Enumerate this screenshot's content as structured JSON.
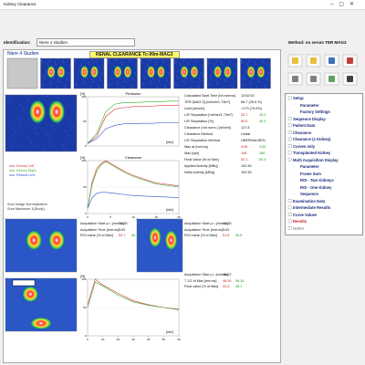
{
  "window_title": "Kidney Clearance",
  "identification_label": "Identification:",
  "identification_value": "Niere 4 Studien",
  "method": "Method: no serum TER  MAG3",
  "study_name": "Niere 4 Studien",
  "banner": "RENAL CLEARANCE   Tc-99m-MAG3",
  "results": [
    {
      "label": "Calculated Start Time [hh:mm:ss]",
      "values": [
        "13:52:02"
      ]
    },
    {
      "label": "TER [MAG 3] [ml/min/1.73m²]",
      "values": [
        "66.7 (26.5 %)"
      ]
    },
    {
      "label": "Limit [ml/min]",
      "values": [
        ">173 (75.0%)"
      ]
    },
    {
      "label": "L/R Separation [ml/min/1.73m²]",
      "values": [
        "33.7",
        "33.0"
      ]
    },
    {
      "label": "L/R Separation [%]",
      "values": [
        "50.6",
        "49.4"
      ]
    },
    {
      "label": "Clearance (not norm.) [ml/min]",
      "values": [
        "127.8"
      ]
    },
    {
      "label": "Clearance Method",
      "values": [
        "Linear"
      ]
    },
    {
      "label": "L/R Separation Method",
      "values": [
        "OBERHAUSEN"
      ]
    },
    {
      "label": "Max at [mm:ss]",
      "values": [
        "4:05",
        "3:05"
      ]
    },
    {
      "label": "Max [cps]",
      "values": [
        "198",
        "186"
      ]
    },
    {
      "label": "Final Value [% of Max]",
      "values": [
        "52.1",
        "50.4"
      ]
    },
    {
      "label": "Applied Activity [MBq]",
      "values": [
        "100.30"
      ]
    },
    {
      "label": "Netto Activity [MBq]",
      "values": [
        "100.30"
      ]
    }
  ],
  "acquisitions": [
    {
      "rows": [
        {
          "label": "Acquisition Start p.i. [mm:ss]",
          "values": [
            "31:28"
          ]
        },
        {
          "label": "Acquisition Time [mm:ss]",
          "values": [
            "5:00"
          ]
        },
        {
          "label": "ROI value [% of Max]",
          "values": [
            "52.7",
            "55.1"
          ]
        }
      ]
    },
    {
      "rows": [
        {
          "label": "Acquisition Start p.i. [mm:ss]",
          "values": [
            "41:28"
          ]
        },
        {
          "label": "Acquisition Time [mm:ss]",
          "values": [
            "5:00"
          ]
        },
        {
          "label": "ROI value [% of Max]",
          "values": [
            "51.8",
            "55.6"
          ]
        }
      ]
    },
    {
      "rows": [
        {
          "label": "Acquisition Start p.i. [mm:ss]",
          "values": [
            "46:22"
          ]
        },
        {
          "label": "T 1/2 of Max [mm:ss]",
          "values": [
            "46:26",
            "58:34"
          ]
        },
        {
          "label": "Final value [% of Max]",
          "values": [
            "43.3",
            "48.1"
          ]
        }
      ]
    }
  ],
  "legend": [
    {
      "name": "Kidney Left",
      "color": "#e03030"
    },
    {
      "name": "Kidney Right",
      "color": "#30b030"
    },
    {
      "name": "Refund Line",
      "color": "#3050d0"
    }
  ],
  "notes": [
    "Sum Image Normalization",
    "Sum Maximum 1(Study)"
  ],
  "charts": [
    {
      "type": "line",
      "title": "Perfusion",
      "y_label": "[%]",
      "x_label": "[min]",
      "xlim": [
        0,
        1
      ],
      "ylim": [
        0,
        100
      ],
      "yticks": [
        0,
        50,
        100
      ],
      "x": [
        0,
        0.1,
        0.2,
        0.3,
        0.4,
        0.5,
        0.6,
        0.7,
        0.8,
        0.9,
        1
      ],
      "series": [
        {
          "color": "#e03030",
          "values": [
            5,
            20,
            60,
            75,
            78,
            80,
            80,
            81,
            82,
            82,
            83
          ]
        },
        {
          "color": "#30b030",
          "values": [
            5,
            25,
            70,
            85,
            88,
            88,
            89,
            90,
            90,
            91,
            91
          ]
        },
        {
          "color": "#3050d0",
          "values": [
            5,
            15,
            35,
            42,
            45,
            45,
            46,
            46,
            47,
            47,
            47
          ]
        }
      ]
    },
    {
      "type": "line",
      "title": "Clearance",
      "y_label": "[%]",
      "x_label": "[min]",
      "xlim": [
        0,
        20
      ],
      "ylim": [
        0,
        100
      ],
      "yticks": [
        0,
        50,
        100
      ],
      "xticks": [
        0,
        5,
        10,
        15,
        20
      ],
      "x": [
        0,
        1,
        2,
        3,
        4,
        6,
        8,
        10,
        12,
        15,
        20
      ],
      "series": [
        {
          "color": "#e03030",
          "values": [
            10,
            60,
            85,
            95,
            100,
            90,
            80,
            72,
            66,
            58,
            52
          ]
        },
        {
          "color": "#30b030",
          "values": [
            10,
            55,
            80,
            92,
            98,
            88,
            78,
            70,
            64,
            56,
            50
          ]
        },
        {
          "color": "#3050d0",
          "values": [
            10,
            30,
            38,
            40,
            40,
            38,
            36,
            34,
            33,
            32,
            30
          ]
        }
      ]
    },
    {
      "type": "line",
      "y_label": "[%]",
      "x_label": "[min]",
      "xlim": [
        0,
        60
      ],
      "ylim": [
        0,
        100
      ],
      "yticks": [
        0,
        50,
        100
      ],
      "xticks": [
        0,
        10,
        20,
        30,
        40,
        50,
        60
      ],
      "x": [
        0,
        5,
        10,
        20,
        30,
        40,
        50,
        60
      ],
      "series": [
        {
          "color": "#e03030",
          "values": [
            55,
            100,
            90,
            75,
            62,
            55,
            50,
            46
          ]
        },
        {
          "color": "#30b030",
          "values": [
            50,
            95,
            88,
            72,
            60,
            54,
            50,
            47
          ]
        }
      ]
    }
  ],
  "tree": [
    {
      "label": "Setup",
      "level": 0
    },
    {
      "label": "Parameter",
      "level": 1
    },
    {
      "label": "Factory Settings",
      "level": 1
    },
    {
      "label": "Sequence Display",
      "level": 0
    },
    {
      "label": "Patient Data",
      "level": 0
    },
    {
      "label": "Clearance",
      "level": 0
    },
    {
      "label": "Clearance (1 Kidney)",
      "level": 0
    },
    {
      "label": "Curves only",
      "level": 0
    },
    {
      "label": "Transplanted Kidney",
      "level": 0
    },
    {
      "label": "Multi Acquisition Display",
      "level": 0
    },
    {
      "label": "Parameter",
      "level": 1
    },
    {
      "label": "Frame Sum",
      "level": 1
    },
    {
      "label": "ROI - Two Kidneys",
      "level": 1
    },
    {
      "label": "ROI - One Kidney",
      "level": 1
    },
    {
      "label": "Sequence",
      "level": 1
    },
    {
      "label": "Examination Data",
      "level": 0
    },
    {
      "label": "Intermediate Results",
      "level": 0
    },
    {
      "label": "Curve Values",
      "level": 0
    },
    {
      "label": "Results",
      "level": 0,
      "color": "#d02020"
    },
    {
      "label": "NORA",
      "level": 0,
      "color": "#999999"
    }
  ]
}
